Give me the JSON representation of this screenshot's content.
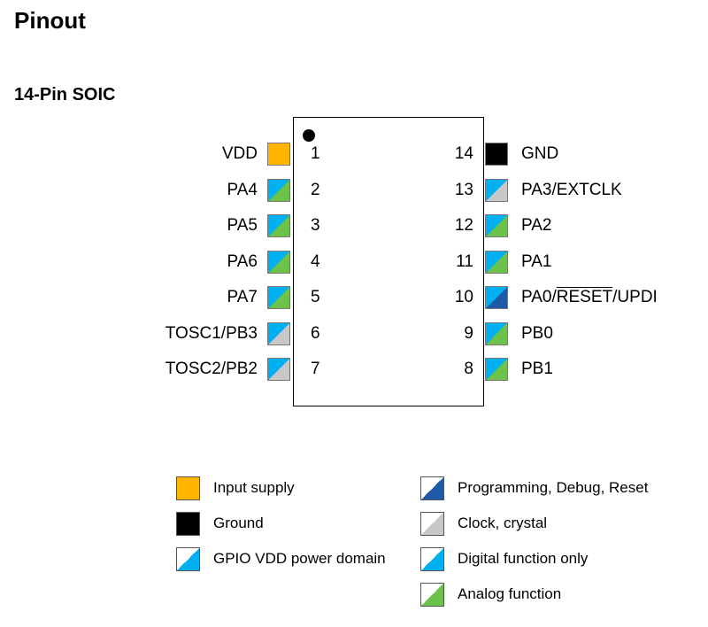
{
  "title": "Pinout",
  "package": "14-Pin SOIC",
  "left_pins": [
    {
      "num": "1",
      "name": "VDD",
      "type": "supply"
    },
    {
      "num": "2",
      "name": "PA4",
      "type": "analog"
    },
    {
      "num": "3",
      "name": "PA5",
      "type": "analog"
    },
    {
      "num": "4",
      "name": "PA6",
      "type": "analog"
    },
    {
      "num": "5",
      "name": "PA7",
      "type": "analog"
    },
    {
      "num": "6",
      "name": "TOSC1/PB3",
      "type": "clock"
    },
    {
      "num": "7",
      "name": "TOSC2/PB2",
      "type": "clock"
    }
  ],
  "right_pins": [
    {
      "num": "14",
      "name": "GND",
      "type": "ground"
    },
    {
      "num": "13",
      "name": "PA3/EXTCLK",
      "type": "clock"
    },
    {
      "num": "12",
      "name": "PA2",
      "type": "analog"
    },
    {
      "num": "11",
      "name": "PA1",
      "type": "analog"
    },
    {
      "num": "10",
      "name_parts": [
        "PA0/",
        "RESET",
        "/UPDI"
      ],
      "type": "programming"
    },
    {
      "num": "9",
      "name": "PB0",
      "type": "analog"
    },
    {
      "num": "8",
      "name": "PB1",
      "type": "analog"
    }
  ],
  "legend_left": [
    {
      "label": "Input supply",
      "type": "supply"
    },
    {
      "label": "Ground",
      "type": "ground"
    },
    {
      "label": "GPIO VDD power domain",
      "type": "gpio"
    }
  ],
  "legend_right": [
    {
      "label": "Programming, Debug, Reset",
      "type": "programming"
    },
    {
      "label": "Clock, crystal",
      "type": "clock"
    },
    {
      "label": "Digital function only",
      "type": "digital"
    },
    {
      "label": "Analog function",
      "type": "analog"
    }
  ],
  "colors": {
    "supply": "#ffb400",
    "ground": "#000000",
    "gpio_domain": "#00b0f0",
    "analog": "#6cc24a",
    "clock": "#c8c8c8",
    "programming": "#1f5aa8",
    "white": "#ffffff"
  }
}
